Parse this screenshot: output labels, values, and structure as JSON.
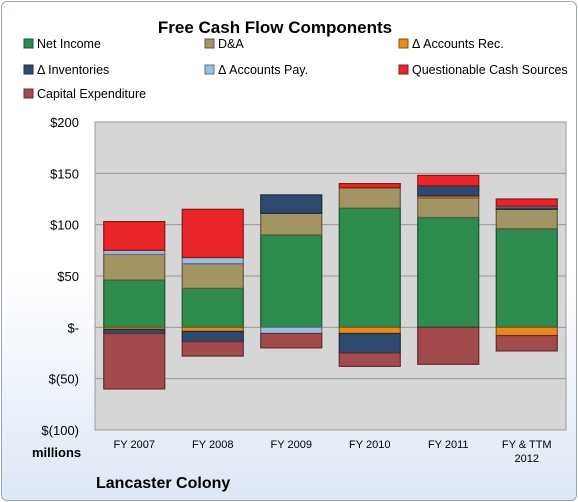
{
  "chart_data": {
    "type": "bar",
    "stacked": true,
    "title": "Free Cash Flow Components",
    "unit_label": "millions",
    "footer_label": "Lancaster Colony",
    "ylim": [
      -100,
      200
    ],
    "y_ticks": [
      200,
      150,
      100,
      50,
      0,
      -50,
      -100
    ],
    "y_tick_labels": [
      "$200",
      "$150",
      "$100",
      "$50",
      "$-",
      "$(50)",
      "$(100)"
    ],
    "grid": true,
    "legend_position": "top",
    "categories": [
      "FY 2007",
      "FY 2008",
      "FY 2009",
      "FY 2010",
      "FY 2011",
      "FY & TTM 2012"
    ],
    "series": [
      {
        "name": "Net Income",
        "color": "#2e8b4e",
        "values": [
          46,
          38,
          90,
          116,
          107,
          96
        ]
      },
      {
        "name": "D&A",
        "color": "#a39464",
        "values": [
          25,
          24,
          21,
          20,
          19,
          19
        ]
      },
      {
        "name": "Δ Accounts Rec.",
        "color": "#e8891a",
        "values": [
          -2,
          -4,
          0,
          -6,
          2,
          -8
        ]
      },
      {
        "name": "Δ Inventories",
        "color": "#2f4a6e",
        "values": [
          -4,
          -10,
          18,
          -19,
          10,
          2
        ]
      },
      {
        "name": "Δ Accounts Pay.",
        "color": "#9ebbe0",
        "values": [
          4,
          6,
          -6,
          0,
          0,
          1
        ]
      },
      {
        "name": "Questionable Cash Sources",
        "color": "#e8262a",
        "values": [
          28,
          47,
          0,
          4,
          10,
          7
        ]
      },
      {
        "name": "Capital Expenditure",
        "color": "#a34a4e",
        "values": [
          -54,
          -14,
          -14,
          -13,
          -36,
          -15
        ]
      }
    ]
  }
}
